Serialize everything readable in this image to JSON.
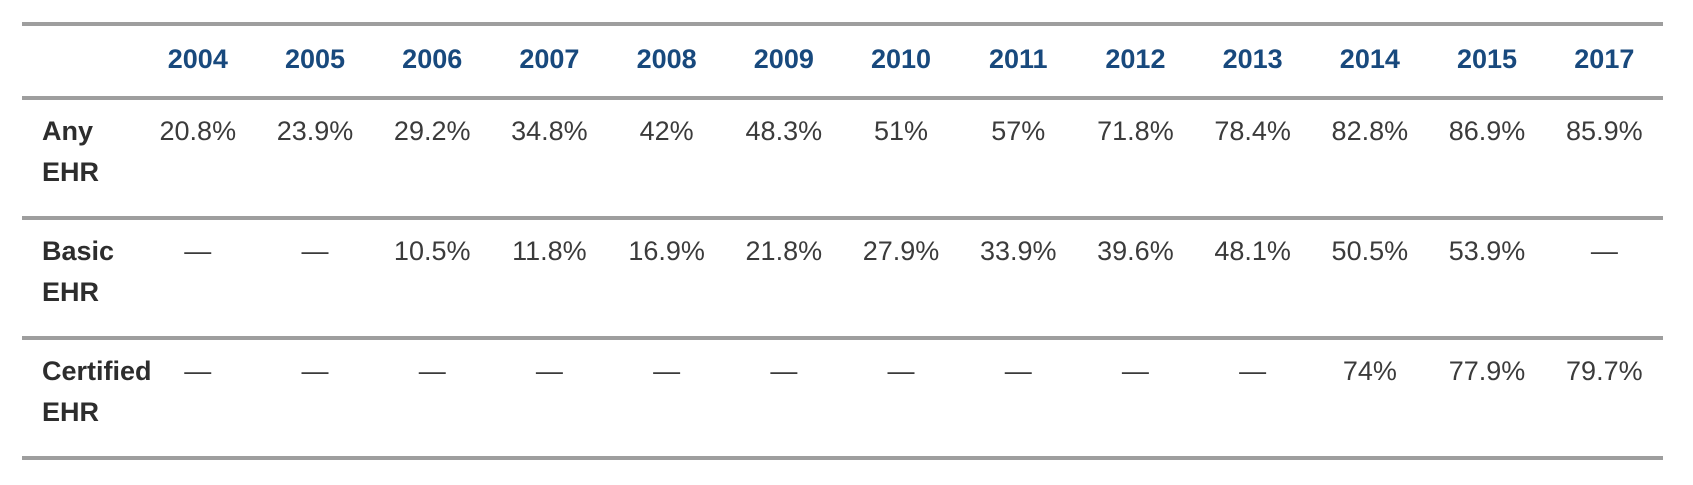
{
  "table": {
    "corner_label": "",
    "years": [
      "2004",
      "2005",
      "2006",
      "2007",
      "2008",
      "2009",
      "2010",
      "2011",
      "2012",
      "2013",
      "2014",
      "2015",
      "2017"
    ],
    "rows": [
      {
        "label": "Any EHR",
        "values": [
          "20.8%",
          "23.9%",
          "29.2%",
          "34.8%",
          "42%",
          "48.3%",
          "51%",
          "57%",
          "71.8%",
          "78.4%",
          "82.8%",
          "86.9%",
          "85.9%"
        ]
      },
      {
        "label": "Basic EHR",
        "values": [
          "—",
          "—",
          "10.5%",
          "11.8%",
          "16.9%",
          "21.8%",
          "27.9%",
          "33.9%",
          "39.6%",
          "48.1%",
          "50.5%",
          "53.9%",
          "—"
        ]
      },
      {
        "label": "Certified EHR",
        "values": [
          "—",
          "—",
          "—",
          "—",
          "—",
          "—",
          "—",
          "—",
          "—",
          "—",
          "74%",
          "77.9%",
          "79.7%"
        ]
      }
    ]
  },
  "colors": {
    "border_gray": "#9e9e9e",
    "header_blue": "#18497d",
    "value_text": "#3b3b3b",
    "label_text": "#2d2d2d",
    "background": "#ffffff"
  },
  "chart_data": {
    "type": "table",
    "title": "",
    "categories": [
      "2004",
      "2005",
      "2006",
      "2007",
      "2008",
      "2009",
      "2010",
      "2011",
      "2012",
      "2013",
      "2014",
      "2015",
      "2017"
    ],
    "series": [
      {
        "name": "Any EHR",
        "values": [
          20.8,
          23.9,
          29.2,
          34.8,
          42,
          48.3,
          51,
          57,
          71.8,
          78.4,
          82.8,
          86.9,
          85.9
        ]
      },
      {
        "name": "Basic EHR",
        "values": [
          null,
          null,
          10.5,
          11.8,
          16.9,
          21.8,
          27.9,
          33.9,
          39.6,
          48.1,
          50.5,
          53.9,
          null
        ]
      },
      {
        "name": "Certified EHR",
        "values": [
          null,
          null,
          null,
          null,
          null,
          null,
          null,
          null,
          null,
          null,
          74,
          77.9,
          79.7
        ]
      }
    ],
    "missing_value_glyph": "—",
    "unit": "percent"
  }
}
